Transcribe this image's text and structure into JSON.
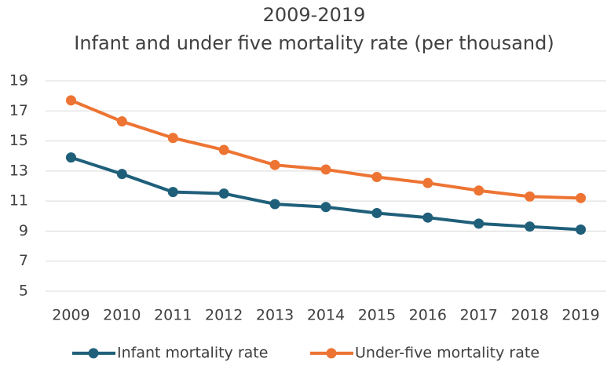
{
  "chart_data": {
    "type": "line",
    "title": "2009-2019",
    "subtitle": "Infant and under five mortality rate (per thousand)",
    "categories": [
      "2009",
      "2010",
      "2011",
      "2012",
      "2013",
      "2014",
      "2015",
      "2016",
      "2017",
      "2018",
      "2019"
    ],
    "series": [
      {
        "name": "Infant mortality rate",
        "color": "#1f5f7a",
        "values": [
          13.9,
          12.8,
          11.6,
          11.5,
          10.8,
          10.6,
          10.2,
          9.9,
          9.5,
          9.3,
          9.1
        ]
      },
      {
        "name": "Under-five mortality rate",
        "color": "#ed7433",
        "values": [
          17.7,
          16.3,
          15.2,
          14.4,
          13.4,
          13.1,
          12.6,
          12.2,
          11.7,
          11.3,
          11.2
        ]
      }
    ],
    "ylim": [
      5,
      19
    ],
    "yticks": [
      5,
      7,
      9,
      11,
      13,
      15,
      17,
      19
    ],
    "grid": true,
    "legend": "bottom"
  }
}
